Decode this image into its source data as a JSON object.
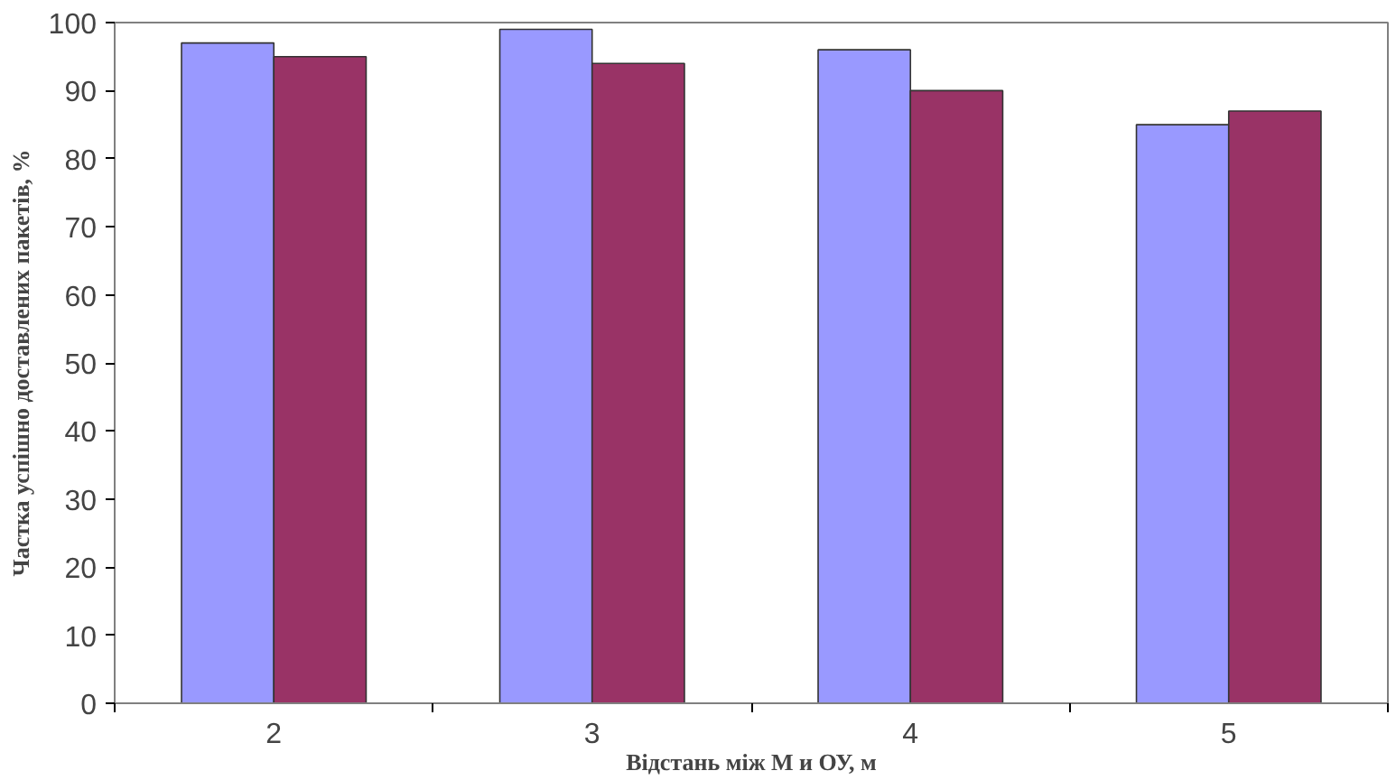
{
  "chart_data": {
    "type": "bar",
    "xlabel": "Відстань між М и ОУ, м",
    "ylabel": "Частка успішно доставлених пакетів, %",
    "categories": [
      "2",
      "3",
      "4",
      "5"
    ],
    "series": [
      {
        "color": "#9999ff",
        "values": [
          97,
          99,
          96,
          85
        ]
      },
      {
        "color": "#993366",
        "values": [
          95,
          94,
          90,
          87
        ]
      }
    ],
    "ylim": [
      0,
      100
    ],
    "yticks": [
      0,
      10,
      20,
      30,
      40,
      50,
      60,
      70,
      80,
      90,
      100
    ],
    "grid": false
  }
}
